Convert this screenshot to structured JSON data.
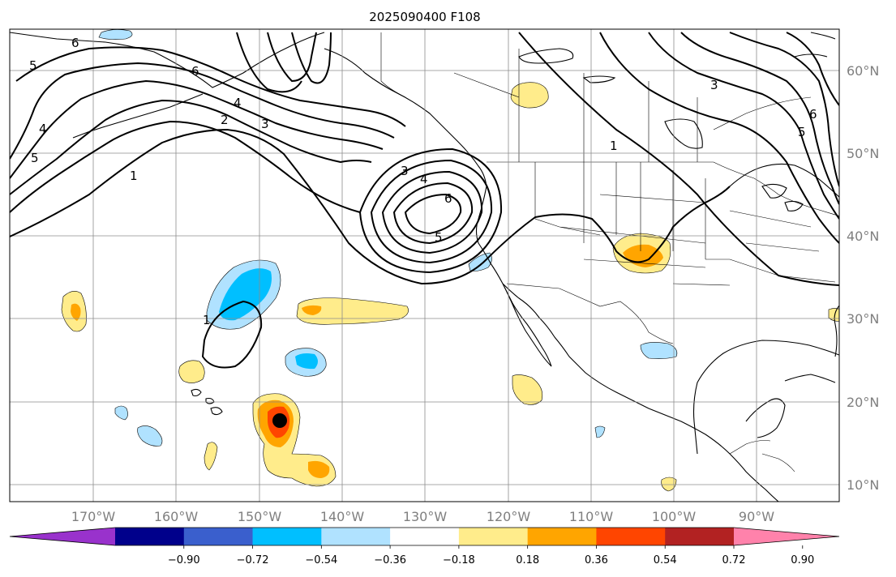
{
  "title": "2025090400 F108",
  "map": {
    "lon_range": [
      -176,
      -76
    ],
    "lat_range": [
      8,
      65
    ],
    "lon_labels": [
      "170°W",
      "160°W",
      "150°W",
      "140°W",
      "130°W",
      "120°W",
      "110°W",
      "100°W",
      "90°W"
    ],
    "lat_labels": [
      "10°N",
      "20°N",
      "30°N",
      "40°N",
      "50°N",
      "60°N"
    ],
    "grid": true
  },
  "colorbar": {
    "tick_labels": [
      "−0.90",
      "−0.72",
      "−0.54",
      "−0.36",
      "−0.18",
      "0.18",
      "0.36",
      "0.54",
      "0.72",
      "0.90"
    ],
    "colors": [
      "#9932cc",
      "#00008b",
      "#3a5fcd",
      "#00bfff",
      "#b0e2ff",
      "#ffffff",
      "#ffec8b",
      "#ffa500",
      "#ff4500",
      "#b22222",
      "#ff82ab"
    ]
  },
  "contour_labels": [
    "1",
    "2",
    "3",
    "4",
    "5",
    "6"
  ],
  "marker": {
    "lon": -147,
    "lat": 17.5,
    "color": "#000000"
  }
}
